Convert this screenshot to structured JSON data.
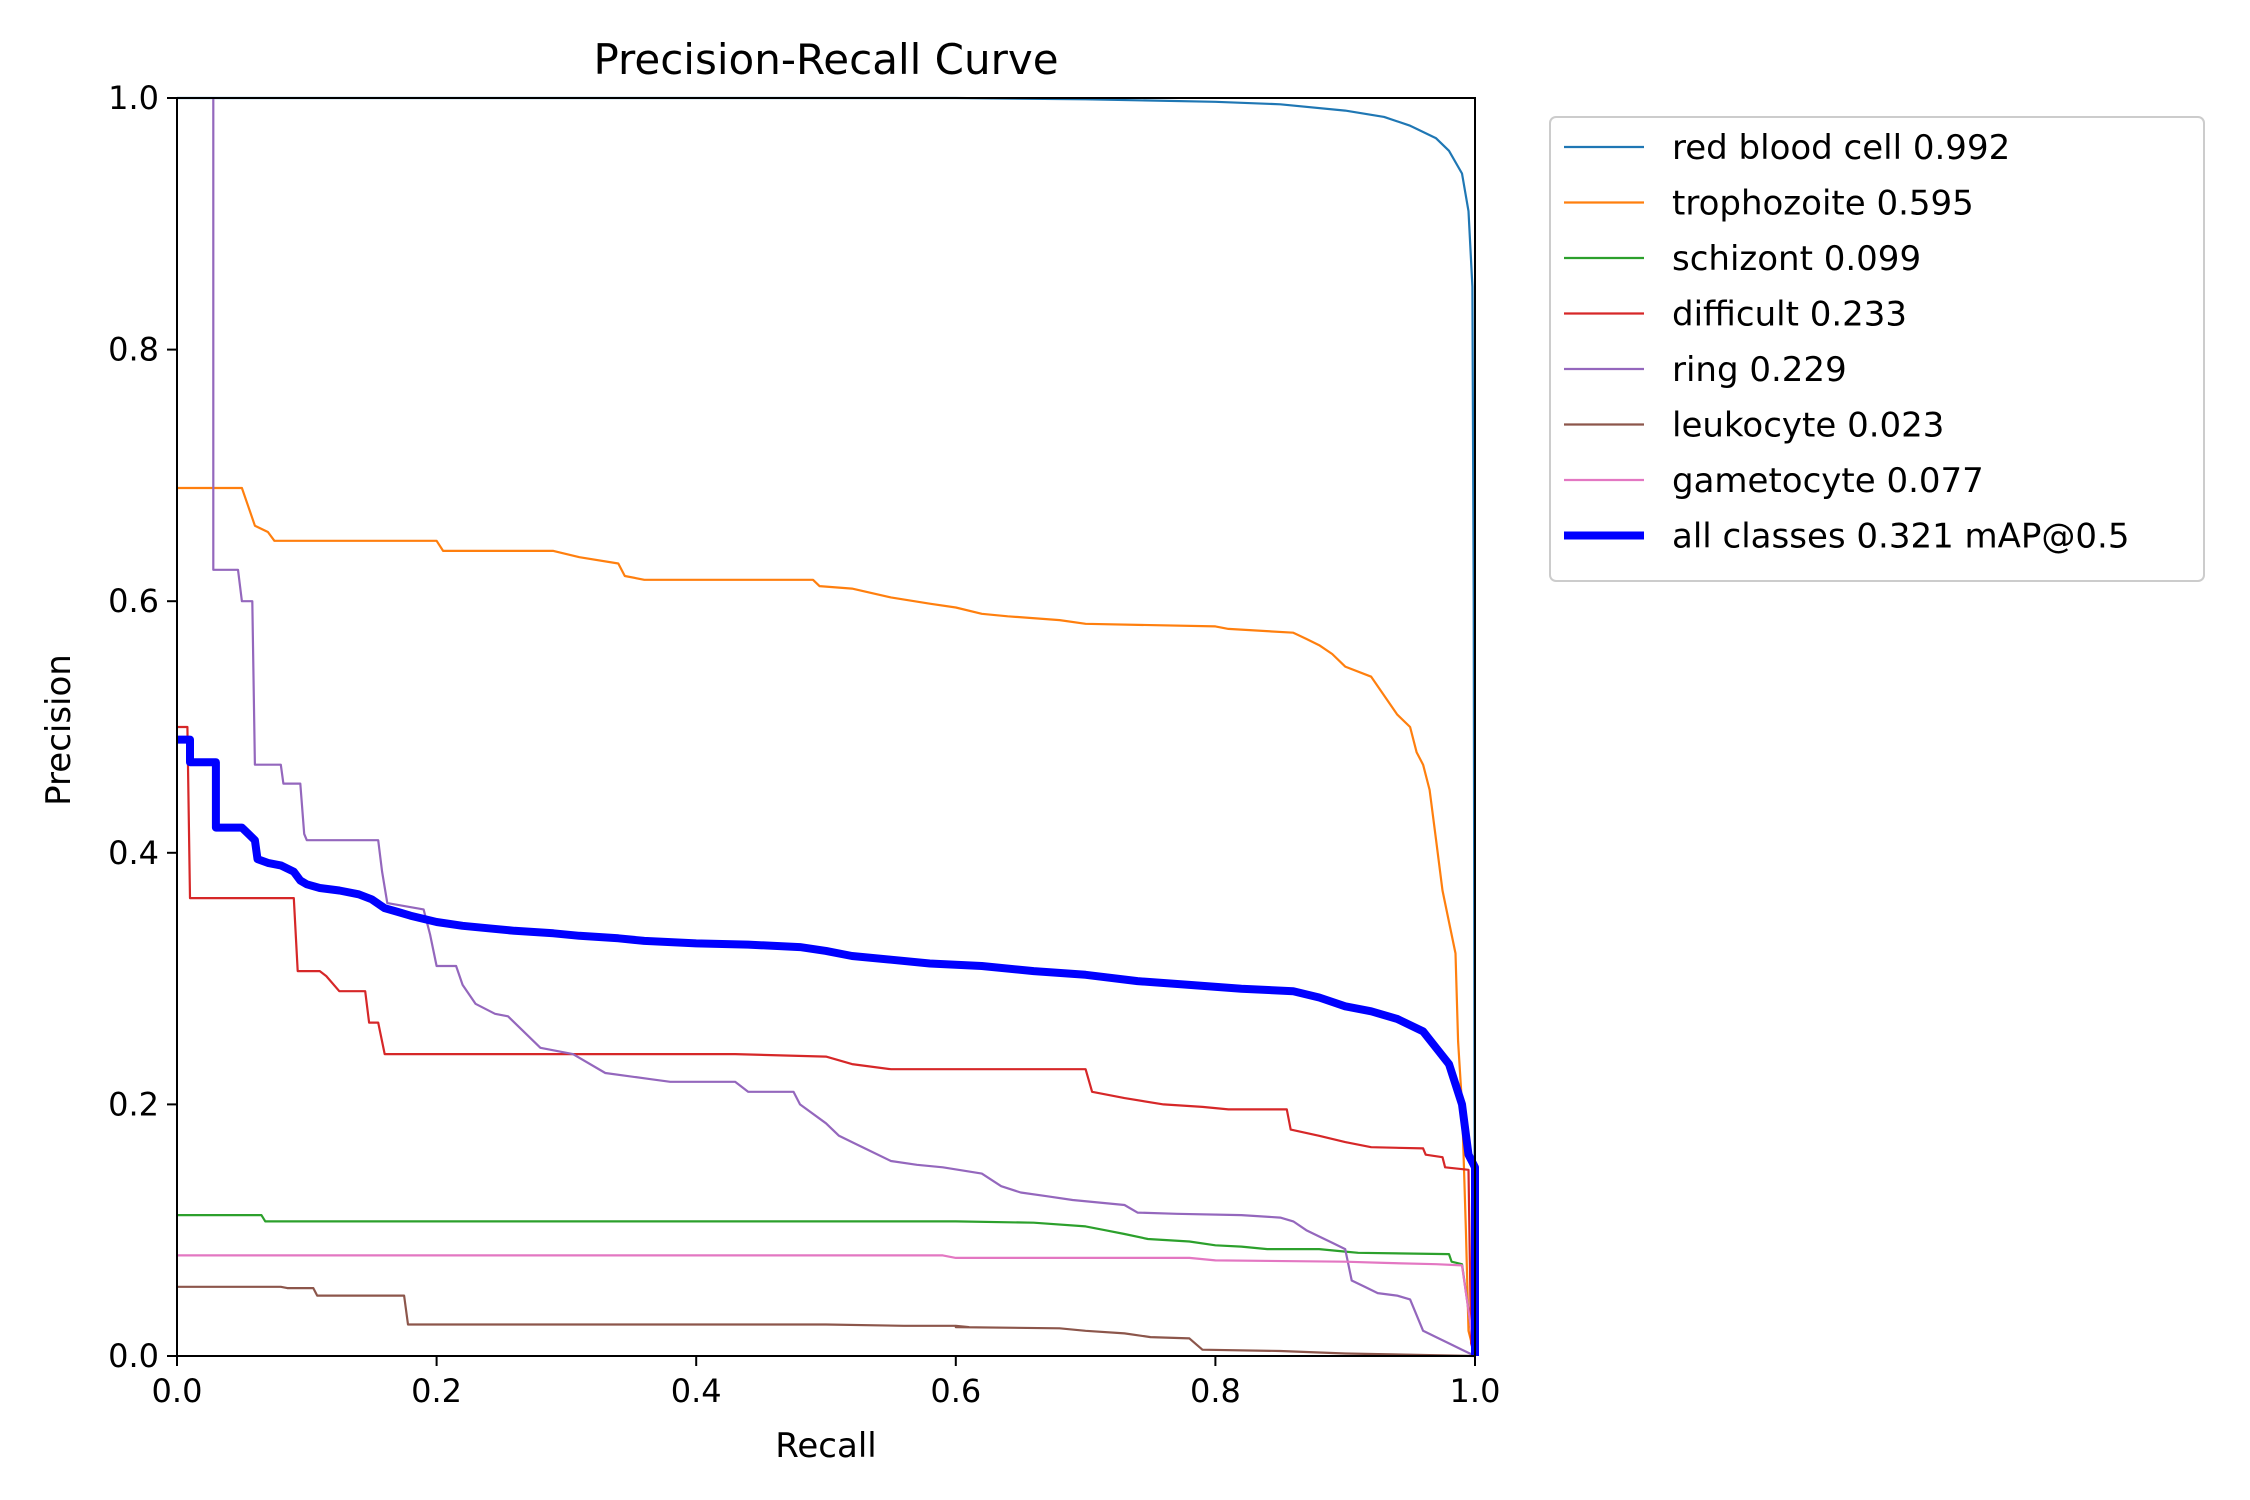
{
  "chart_data": {
    "type": "line",
    "title": "Precision-Recall Curve",
    "xlabel": "Recall",
    "ylabel": "Precision",
    "xlim": [
      0,
      1
    ],
    "ylim": [
      0,
      1
    ],
    "x_ticks": [
      "0.0",
      "0.2",
      "0.4",
      "0.6",
      "0.8",
      "1.0"
    ],
    "y_ticks": [
      "0.0",
      "0.2",
      "0.4",
      "0.6",
      "0.8",
      "1.0"
    ],
    "grid": false,
    "legend_position": "outside-right-top",
    "series": [
      {
        "name": "red blood cell 0.992",
        "color": "#1f77b4",
        "thick": false,
        "points": [
          [
            0,
            1.0
          ],
          [
            0.6,
            1.0
          ],
          [
            0.7,
            0.999
          ],
          [
            0.8,
            0.997
          ],
          [
            0.85,
            0.995
          ],
          [
            0.9,
            0.99
          ],
          [
            0.93,
            0.985
          ],
          [
            0.95,
            0.978
          ],
          [
            0.97,
            0.968
          ],
          [
            0.98,
            0.958
          ],
          [
            0.99,
            0.94
          ],
          [
            0.995,
            0.91
          ],
          [
            0.998,
            0.85
          ],
          [
            0.999,
            0.6
          ],
          [
            1.0,
            0.0
          ]
        ]
      },
      {
        "name": "trophozoite 0.595",
        "color": "#ff7f0e",
        "thick": false,
        "points": [
          [
            0,
            0.69
          ],
          [
            0.05,
            0.69
          ],
          [
            0.055,
            0.675
          ],
          [
            0.06,
            0.66
          ],
          [
            0.07,
            0.655
          ],
          [
            0.075,
            0.648
          ],
          [
            0.2,
            0.648
          ],
          [
            0.205,
            0.64
          ],
          [
            0.29,
            0.64
          ],
          [
            0.31,
            0.635
          ],
          [
            0.34,
            0.63
          ],
          [
            0.345,
            0.62
          ],
          [
            0.36,
            0.617
          ],
          [
            0.49,
            0.617
          ],
          [
            0.495,
            0.612
          ],
          [
            0.52,
            0.61
          ],
          [
            0.55,
            0.603
          ],
          [
            0.58,
            0.598
          ],
          [
            0.6,
            0.595
          ],
          [
            0.62,
            0.59
          ],
          [
            0.64,
            0.588
          ],
          [
            0.68,
            0.585
          ],
          [
            0.7,
            0.582
          ],
          [
            0.8,
            0.58
          ],
          [
            0.81,
            0.578
          ],
          [
            0.86,
            0.575
          ],
          [
            0.87,
            0.57
          ],
          [
            0.88,
            0.565
          ],
          [
            0.89,
            0.558
          ],
          [
            0.9,
            0.548
          ],
          [
            0.92,
            0.54
          ],
          [
            0.93,
            0.525
          ],
          [
            0.94,
            0.51
          ],
          [
            0.95,
            0.5
          ],
          [
            0.955,
            0.48
          ],
          [
            0.96,
            0.47
          ],
          [
            0.965,
            0.45
          ],
          [
            0.97,
            0.41
          ],
          [
            0.975,
            0.37
          ],
          [
            0.98,
            0.345
          ],
          [
            0.985,
            0.32
          ],
          [
            0.987,
            0.25
          ],
          [
            0.99,
            0.2
          ],
          [
            0.993,
            0.1
          ],
          [
            0.995,
            0.02
          ],
          [
            1.0,
            0.0
          ]
        ]
      },
      {
        "name": "schizont 0.099",
        "color": "#2ca02c",
        "thick": false,
        "points": [
          [
            0,
            0.112
          ],
          [
            0.065,
            0.112
          ],
          [
            0.068,
            0.107
          ],
          [
            0.6,
            0.107
          ],
          [
            0.66,
            0.106
          ],
          [
            0.7,
            0.103
          ],
          [
            0.715,
            0.1
          ],
          [
            0.73,
            0.097
          ],
          [
            0.748,
            0.093
          ],
          [
            0.78,
            0.091
          ],
          [
            0.8,
            0.088
          ],
          [
            0.82,
            0.087
          ],
          [
            0.84,
            0.085
          ],
          [
            0.88,
            0.085
          ],
          [
            0.9,
            0.083
          ],
          [
            0.91,
            0.082
          ],
          [
            0.98,
            0.081
          ],
          [
            0.982,
            0.075
          ],
          [
            0.99,
            0.073
          ],
          [
            1.0,
            0.0
          ]
        ]
      },
      {
        "name": "difficult 0.233",
        "color": "#d62728",
        "thick": false,
        "points": [
          [
            0,
            0.5
          ],
          [
            0.008,
            0.5
          ],
          [
            0.01,
            0.364
          ],
          [
            0.09,
            0.364
          ],
          [
            0.093,
            0.306
          ],
          [
            0.11,
            0.306
          ],
          [
            0.115,
            0.302
          ],
          [
            0.125,
            0.29
          ],
          [
            0.145,
            0.29
          ],
          [
            0.148,
            0.265
          ],
          [
            0.155,
            0.265
          ],
          [
            0.16,
            0.24
          ],
          [
            0.43,
            0.24
          ],
          [
            0.5,
            0.238
          ],
          [
            0.52,
            0.232
          ],
          [
            0.55,
            0.228
          ],
          [
            0.7,
            0.228
          ],
          [
            0.705,
            0.21
          ],
          [
            0.73,
            0.205
          ],
          [
            0.76,
            0.2
          ],
          [
            0.79,
            0.198
          ],
          [
            0.81,
            0.196
          ],
          [
            0.855,
            0.196
          ],
          [
            0.858,
            0.18
          ],
          [
            0.88,
            0.175
          ],
          [
            0.9,
            0.17
          ],
          [
            0.92,
            0.166
          ],
          [
            0.96,
            0.165
          ],
          [
            0.962,
            0.16
          ],
          [
            0.975,
            0.158
          ],
          [
            0.977,
            0.15
          ],
          [
            0.995,
            0.148
          ],
          [
            0.997,
            0.01
          ],
          [
            1.0,
            0.0
          ]
        ]
      },
      {
        "name": "ring 0.229",
        "color": "#9467bd",
        "thick": false,
        "points": [
          [
            0.028,
            1.0
          ],
          [
            0.028,
            0.625
          ],
          [
            0.047,
            0.625
          ],
          [
            0.05,
            0.6
          ],
          [
            0.058,
            0.6
          ],
          [
            0.06,
            0.47
          ],
          [
            0.08,
            0.47
          ],
          [
            0.082,
            0.455
          ],
          [
            0.095,
            0.455
          ],
          [
            0.098,
            0.415
          ],
          [
            0.1,
            0.41
          ],
          [
            0.155,
            0.41
          ],
          [
            0.158,
            0.385
          ],
          [
            0.162,
            0.36
          ],
          [
            0.19,
            0.355
          ],
          [
            0.195,
            0.335
          ],
          [
            0.2,
            0.31
          ],
          [
            0.215,
            0.31
          ],
          [
            0.22,
            0.295
          ],
          [
            0.23,
            0.28
          ],
          [
            0.245,
            0.272
          ],
          [
            0.255,
            0.27
          ],
          [
            0.28,
            0.245
          ],
          [
            0.305,
            0.24
          ],
          [
            0.33,
            0.225
          ],
          [
            0.365,
            0.22
          ],
          [
            0.38,
            0.218
          ],
          [
            0.43,
            0.218
          ],
          [
            0.44,
            0.21
          ],
          [
            0.475,
            0.21
          ],
          [
            0.48,
            0.2
          ],
          [
            0.5,
            0.185
          ],
          [
            0.51,
            0.175
          ],
          [
            0.53,
            0.165
          ],
          [
            0.55,
            0.155
          ],
          [
            0.57,
            0.152
          ],
          [
            0.59,
            0.15
          ],
          [
            0.62,
            0.145
          ],
          [
            0.635,
            0.135
          ],
          [
            0.65,
            0.13
          ],
          [
            0.67,
            0.127
          ],
          [
            0.69,
            0.124
          ],
          [
            0.73,
            0.12
          ],
          [
            0.74,
            0.114
          ],
          [
            0.77,
            0.113
          ],
          [
            0.82,
            0.112
          ],
          [
            0.85,
            0.11
          ],
          [
            0.86,
            0.107
          ],
          [
            0.87,
            0.1
          ],
          [
            0.88,
            0.095
          ],
          [
            0.89,
            0.09
          ],
          [
            0.9,
            0.085
          ],
          [
            0.905,
            0.06
          ],
          [
            0.915,
            0.055
          ],
          [
            0.925,
            0.05
          ],
          [
            0.94,
            0.048
          ],
          [
            0.95,
            0.045
          ],
          [
            0.96,
            0.02
          ],
          [
            0.97,
            0.015
          ],
          [
            0.98,
            0.01
          ],
          [
            0.99,
            0.005
          ],
          [
            1.0,
            0.0
          ]
        ]
      },
      {
        "name": "leukocyte 0.023",
        "color": "#8c564b",
        "thick": false,
        "points": [
          [
            0,
            0.055
          ],
          [
            0.08,
            0.055
          ],
          [
            0.085,
            0.054
          ],
          [
            0.105,
            0.054
          ],
          [
            0.108,
            0.048
          ],
          [
            0.175,
            0.048
          ],
          [
            0.178,
            0.025
          ],
          [
            0.5,
            0.025
          ],
          [
            0.56,
            0.024
          ],
          [
            0.6,
            0.024
          ],
          [
            0.61,
            0.023
          ],
          [
            0.6,
            0.023
          ],
          [
            0.68,
            0.022
          ],
          [
            0.7,
            0.02
          ],
          [
            0.73,
            0.018
          ],
          [
            0.75,
            0.015
          ],
          [
            0.78,
            0.014
          ],
          [
            0.79,
            0.005
          ],
          [
            0.85,
            0.004
          ],
          [
            0.9,
            0.002
          ],
          [
            1.0,
            0.0
          ]
        ]
      },
      {
        "name": "gametocyte 0.077",
        "color": "#e377c2",
        "thick": false,
        "points": [
          [
            0,
            0.08
          ],
          [
            0.59,
            0.08
          ],
          [
            0.6,
            0.078
          ],
          [
            0.78,
            0.078
          ],
          [
            0.8,
            0.076
          ],
          [
            0.9,
            0.075
          ],
          [
            0.93,
            0.074
          ],
          [
            0.97,
            0.073
          ],
          [
            0.99,
            0.072
          ],
          [
            1.0,
            0.0
          ]
        ]
      },
      {
        "name": "all classes 0.321 mAP@0.5",
        "color": "#0000ff",
        "thick": true,
        "points": [
          [
            0,
            0.49
          ],
          [
            0.01,
            0.49
          ],
          [
            0.01,
            0.472
          ],
          [
            0.03,
            0.472
          ],
          [
            0.03,
            0.42
          ],
          [
            0.05,
            0.42
          ],
          [
            0.055,
            0.415
          ],
          [
            0.06,
            0.41
          ],
          [
            0.062,
            0.395
          ],
          [
            0.07,
            0.392
          ],
          [
            0.08,
            0.39
          ],
          [
            0.09,
            0.385
          ],
          [
            0.095,
            0.378
          ],
          [
            0.1,
            0.375
          ],
          [
            0.11,
            0.372
          ],
          [
            0.125,
            0.37
          ],
          [
            0.14,
            0.367
          ],
          [
            0.15,
            0.363
          ],
          [
            0.16,
            0.356
          ],
          [
            0.17,
            0.353
          ],
          [
            0.18,
            0.35
          ],
          [
            0.2,
            0.345
          ],
          [
            0.22,
            0.342
          ],
          [
            0.24,
            0.34
          ],
          [
            0.26,
            0.338
          ],
          [
            0.29,
            0.336
          ],
          [
            0.31,
            0.334
          ],
          [
            0.34,
            0.332
          ],
          [
            0.36,
            0.33
          ],
          [
            0.4,
            0.328
          ],
          [
            0.44,
            0.327
          ],
          [
            0.48,
            0.325
          ],
          [
            0.5,
            0.322
          ],
          [
            0.52,
            0.318
          ],
          [
            0.55,
            0.315
          ],
          [
            0.58,
            0.312
          ],
          [
            0.62,
            0.31
          ],
          [
            0.66,
            0.306
          ],
          [
            0.7,
            0.303
          ],
          [
            0.74,
            0.298
          ],
          [
            0.78,
            0.295
          ],
          [
            0.82,
            0.292
          ],
          [
            0.86,
            0.29
          ],
          [
            0.88,
            0.285
          ],
          [
            0.9,
            0.278
          ],
          [
            0.92,
            0.274
          ],
          [
            0.94,
            0.268
          ],
          [
            0.96,
            0.258
          ],
          [
            0.97,
            0.245
          ],
          [
            0.98,
            0.232
          ],
          [
            0.99,
            0.2
          ],
          [
            0.995,
            0.16
          ],
          [
            1.0,
            0.15
          ],
          [
            1.0,
            0.0
          ]
        ]
      }
    ]
  }
}
